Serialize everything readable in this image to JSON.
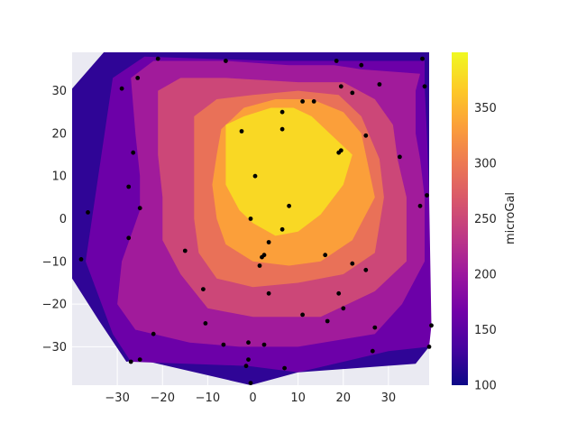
{
  "chart_data": {
    "type": "contour",
    "title": "",
    "xlabel": "",
    "ylabel": "",
    "xlim": [
      -40,
      39
    ],
    "ylim": [
      -39,
      39
    ],
    "xticks": [
      -30,
      -20,
      -10,
      0,
      10,
      20,
      30
    ],
    "yticks": [
      -30,
      -20,
      -10,
      0,
      10,
      20,
      30
    ],
    "grid": true,
    "colormap": "plasma",
    "colorbar": {
      "label": "microGal",
      "range": [
        100,
        400
      ],
      "ticks": [
        100,
        150,
        200,
        250,
        300,
        350
      ]
    },
    "levels": [
      100,
      150,
      200,
      250,
      300,
      350,
      400
    ],
    "level_colors": [
      "#2f0596",
      "#6c00a8",
      "#a11b9b",
      "#cc4778",
      "#e97158",
      "#fb9f3a",
      "#f9d824"
    ],
    "station_color": "#000000",
    "stations": [
      [
        -21,
        37.5
      ],
      [
        -6,
        37
      ],
      [
        18.5,
        37
      ],
      [
        24,
        36
      ],
      [
        37.5,
        37.5
      ],
      [
        -25.5,
        33
      ],
      [
        -29,
        30.5
      ],
      [
        19.5,
        31
      ],
      [
        22,
        29.5
      ],
      [
        28,
        31.5
      ],
      [
        38,
        31
      ],
      [
        11,
        27.5
      ],
      [
        13.5,
        27.5
      ],
      [
        6.5,
        25
      ],
      [
        6.5,
        21
      ],
      [
        -2.5,
        20.5
      ],
      [
        25,
        19.5
      ],
      [
        -26.5,
        15.5
      ],
      [
        19,
        15.5
      ],
      [
        19.5,
        16
      ],
      [
        32.5,
        14.5
      ],
      [
        0.5,
        10
      ],
      [
        -27.5,
        7.5
      ],
      [
        38.5,
        5.5
      ],
      [
        -25,
        2.5
      ],
      [
        8,
        3
      ],
      [
        37,
        3
      ],
      [
        -36.5,
        1.5
      ],
      [
        -0.5,
        0
      ],
      [
        6.5,
        -2.5
      ],
      [
        -27.5,
        -4.5
      ],
      [
        3.5,
        -5.5
      ],
      [
        -38,
        -9.5
      ],
      [
        -15,
        -7.5
      ],
      [
        16,
        -8.5
      ],
      [
        2.5,
        -8.5
      ],
      [
        2,
        -9
      ],
      [
        1.5,
        -11
      ],
      [
        22,
        -10.5
      ],
      [
        25,
        -12
      ],
      [
        -11,
        -16.5
      ],
      [
        3.5,
        -17.5
      ],
      [
        19,
        -17.5
      ],
      [
        20,
        -21
      ],
      [
        11,
        -22.5
      ],
      [
        -10.5,
        -24.5
      ],
      [
        16.5,
        -24
      ],
      [
        -22,
        -27
      ],
      [
        27,
        -25.5
      ],
      [
        39.5,
        -25
      ],
      [
        -6.5,
        -29.5
      ],
      [
        -1,
        -29
      ],
      [
        2.5,
        -29.5
      ],
      [
        39,
        -30
      ],
      [
        26.5,
        -31
      ],
      [
        -27,
        -33.5
      ],
      [
        -25,
        -33
      ],
      [
        -1,
        -33
      ],
      [
        -1.5,
        -34.5
      ],
      [
        7,
        -35
      ],
      [
        -0.5,
        -38.5
      ]
    ]
  }
}
